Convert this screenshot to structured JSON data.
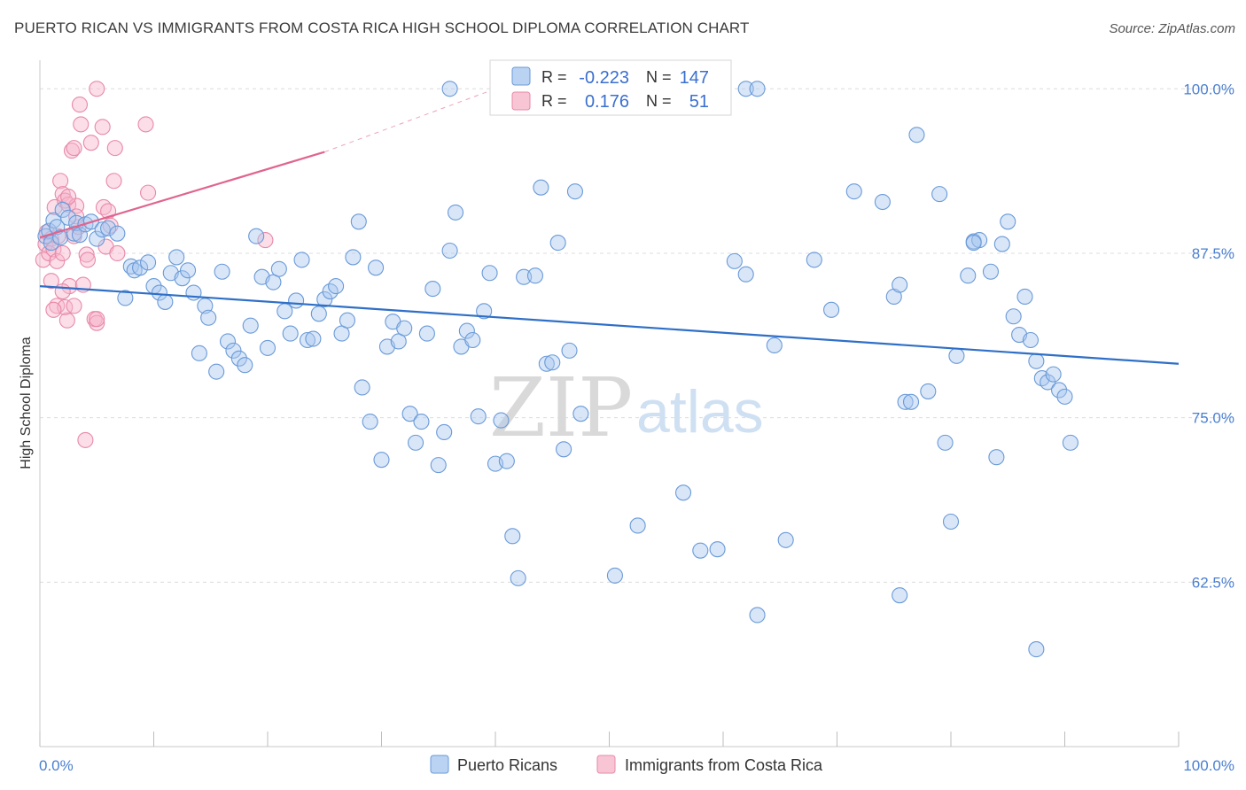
{
  "title": "PUERTO RICAN VS IMMIGRANTS FROM COSTA RICA HIGH SCHOOL DIPLOMA CORRELATION CHART",
  "source": "Source: ZipAtlas.com",
  "watermark": {
    "zip": "ZIP",
    "atlas": "atlas"
  },
  "colors": {
    "blue_fill": "#a9c8ef",
    "blue_stroke": "#6a9ad8",
    "blue_line": "#2f6fc7",
    "pink_fill": "#f6b6cb",
    "pink_stroke": "#e889a8",
    "pink_line": "#e0648e",
    "grid": "#dcdcdc",
    "tick_label": "#4a7fd0"
  },
  "legend_top": {
    "rows": [
      {
        "r_label": "R = ",
        "r_value": "-0.223",
        "n_label": "N = ",
        "n_value": "147",
        "series": "blue"
      },
      {
        "r_label": "R = ",
        "r_value": "0.176",
        "n_label": "N = ",
        "n_value": "51",
        "series": "pink"
      }
    ]
  },
  "legend_bottom": [
    {
      "label": "Puerto Ricans",
      "series": "blue"
    },
    {
      "label": "Immigrants from Costa Rica",
      "series": "pink"
    }
  ],
  "chart_data": {
    "type": "scatter",
    "title": "PUERTO RICAN VS IMMIGRANTS FROM COSTA RICA HIGH SCHOOL DIPLOMA CORRELATION CHART",
    "xlabel": "",
    "ylabel": "High School Diploma",
    "xlim": [
      0,
      100
    ],
    "ylim": [
      50,
      101.5
    ],
    "x_tick_labels": [
      "0.0%",
      "100.0%"
    ],
    "y_ticks": [
      62.5,
      75.0,
      87.5,
      100.0
    ],
    "y_tick_labels": [
      "62.5%",
      "75.0%",
      "87.5%",
      "100.0%"
    ],
    "grid": true,
    "series": [
      {
        "name": "Puerto Ricans",
        "color": "blue",
        "trend": {
          "x": [
            0,
            100
          ],
          "y": [
            85.0,
            79.1
          ],
          "dashed_extension": false
        },
        "points": [
          [
            0.5,
            88.8
          ],
          [
            0.8,
            89.2
          ],
          [
            1.0,
            88.3
          ],
          [
            1.2,
            90.0
          ],
          [
            1.5,
            89.5
          ],
          [
            1.8,
            88.7
          ],
          [
            2.0,
            90.8
          ],
          [
            2.5,
            90.2
          ],
          [
            3.0,
            89.0
          ],
          [
            3.2,
            89.8
          ],
          [
            3.5,
            88.9
          ],
          [
            4.0,
            89.7
          ],
          [
            4.5,
            89.9
          ],
          [
            5.0,
            88.6
          ],
          [
            5.5,
            89.3
          ],
          [
            6.0,
            89.4
          ],
          [
            6.8,
            89.0
          ],
          [
            7.5,
            84.1
          ],
          [
            8.0,
            86.5
          ],
          [
            8.3,
            86.2
          ],
          [
            8.8,
            86.4
          ],
          [
            9.5,
            86.8
          ],
          [
            10.0,
            85.0
          ],
          [
            10.5,
            84.5
          ],
          [
            11.0,
            83.8
          ],
          [
            11.5,
            86.0
          ],
          [
            12.0,
            87.2
          ],
          [
            12.5,
            85.6
          ],
          [
            13.0,
            86.2
          ],
          [
            13.5,
            84.5
          ],
          [
            14.0,
            79.9
          ],
          [
            14.5,
            83.5
          ],
          [
            14.8,
            82.6
          ],
          [
            15.5,
            78.5
          ],
          [
            16.0,
            86.1
          ],
          [
            16.5,
            80.8
          ],
          [
            17.0,
            80.1
          ],
          [
            17.5,
            79.5
          ],
          [
            18.0,
            79.0
          ],
          [
            18.5,
            82.0
          ],
          [
            19.0,
            88.8
          ],
          [
            19.5,
            85.7
          ],
          [
            20.0,
            80.3
          ],
          [
            20.5,
            85.3
          ],
          [
            21.0,
            86.3
          ],
          [
            21.5,
            83.1
          ],
          [
            22.0,
            81.4
          ],
          [
            22.5,
            83.9
          ],
          [
            23.0,
            87.0
          ],
          [
            23.5,
            80.9
          ],
          [
            24.0,
            81.0
          ],
          [
            24.5,
            82.9
          ],
          [
            25.0,
            84.0
          ],
          [
            25.5,
            84.6
          ],
          [
            26.0,
            85.0
          ],
          [
            26.5,
            81.4
          ],
          [
            27.0,
            82.4
          ],
          [
            27.5,
            87.2
          ],
          [
            28.0,
            89.9
          ],
          [
            28.3,
            77.3
          ],
          [
            29.0,
            74.7
          ],
          [
            29.5,
            86.4
          ],
          [
            30.0,
            71.8
          ],
          [
            30.5,
            80.4
          ],
          [
            31.0,
            82.3
          ],
          [
            31.5,
            80.8
          ],
          [
            32.0,
            81.8
          ],
          [
            32.5,
            75.3
          ],
          [
            33.0,
            73.1
          ],
          [
            33.5,
            74.7
          ],
          [
            34.0,
            81.4
          ],
          [
            34.5,
            84.8
          ],
          [
            35.0,
            71.4
          ],
          [
            35.5,
            73.9
          ],
          [
            36.0,
            87.7
          ],
          [
            36.5,
            90.6
          ],
          [
            37.0,
            80.4
          ],
          [
            37.5,
            81.6
          ],
          [
            38.0,
            80.9
          ],
          [
            38.5,
            75.1
          ],
          [
            39.0,
            83.1
          ],
          [
            39.5,
            86.0
          ],
          [
            40.0,
            71.5
          ],
          [
            40.5,
            74.8
          ],
          [
            41.0,
            71.7
          ],
          [
            41.5,
            66.0
          ],
          [
            42.0,
            62.8
          ],
          [
            42.5,
            85.7
          ],
          [
            43.5,
            85.8
          ],
          [
            44.0,
            92.5
          ],
          [
            44.5,
            79.1
          ],
          [
            45.0,
            79.2
          ],
          [
            45.5,
            88.3
          ],
          [
            46.0,
            72.6
          ],
          [
            46.5,
            80.1
          ],
          [
            47.0,
            92.2
          ],
          [
            47.5,
            75.3
          ],
          [
            36.0,
            100.0
          ],
          [
            53.0,
            100.0
          ],
          [
            58.0,
            100.0
          ],
          [
            60.0,
            100.0
          ],
          [
            62.0,
            100.0
          ],
          [
            63.0,
            100.0
          ],
          [
            50.5,
            63.0
          ],
          [
            52.5,
            66.8
          ],
          [
            56.5,
            69.3
          ],
          [
            58.0,
            64.9
          ],
          [
            59.5,
            65.0
          ],
          [
            61.0,
            86.9
          ],
          [
            62.0,
            85.9
          ],
          [
            63.0,
            60.0
          ],
          [
            64.5,
            80.5
          ],
          [
            65.5,
            65.7
          ],
          [
            68.0,
            87.0
          ],
          [
            69.5,
            83.2
          ],
          [
            71.5,
            92.2
          ],
          [
            74.0,
            91.4
          ],
          [
            75.5,
            61.5
          ],
          [
            76.0,
            76.2
          ],
          [
            76.5,
            76.2
          ],
          [
            77.0,
            96.5
          ],
          [
            78.0,
            77.0
          ],
          [
            79.0,
            92.0
          ],
          [
            79.5,
            73.1
          ],
          [
            80.0,
            67.1
          ],
          [
            80.5,
            79.7
          ],
          [
            81.5,
            85.8
          ],
          [
            82.0,
            88.4
          ],
          [
            82.5,
            88.5
          ],
          [
            82.0,
            88.3
          ],
          [
            83.5,
            86.1
          ],
          [
            84.0,
            72.0
          ],
          [
            84.5,
            88.2
          ],
          [
            85.0,
            89.9
          ],
          [
            85.5,
            82.7
          ],
          [
            86.0,
            81.3
          ],
          [
            86.5,
            84.2
          ],
          [
            87.0,
            80.9
          ],
          [
            87.5,
            79.3
          ],
          [
            88.0,
            78.0
          ],
          [
            88.5,
            77.7
          ],
          [
            89.0,
            78.3
          ],
          [
            89.5,
            77.1
          ],
          [
            90.0,
            76.6
          ],
          [
            90.5,
            73.1
          ],
          [
            87.5,
            57.4
          ],
          [
            75.0,
            84.2
          ],
          [
            75.5,
            85.1
          ]
        ]
      },
      {
        "name": "Immigrants from Costa Rica",
        "color": "pink",
        "trend": {
          "x": [
            0,
            25
          ],
          "y": [
            88.7,
            95.2
          ],
          "dashed_extension": true,
          "dashed_to": [
            40,
            100.0
          ]
        },
        "points": [
          [
            0.3,
            87.0
          ],
          [
            0.5,
            88.2
          ],
          [
            0.6,
            89.1
          ],
          [
            0.8,
            87.5
          ],
          [
            1.0,
            88.6
          ],
          [
            1.0,
            85.4
          ],
          [
            1.2,
            87.8
          ],
          [
            1.3,
            91.0
          ],
          [
            1.5,
            86.9
          ],
          [
            1.6,
            88.8
          ],
          [
            1.8,
            93.0
          ],
          [
            2.0,
            92.0
          ],
          [
            2.0,
            87.5
          ],
          [
            2.2,
            91.5
          ],
          [
            2.4,
            82.4
          ],
          [
            2.5,
            91.2
          ],
          [
            2.6,
            85.0
          ],
          [
            2.8,
            95.3
          ],
          [
            3.0,
            95.5
          ],
          [
            3.0,
            88.8
          ],
          [
            3.2,
            91.1
          ],
          [
            3.4,
            89.5
          ],
          [
            3.5,
            98.8
          ],
          [
            3.6,
            97.3
          ],
          [
            3.8,
            85.1
          ],
          [
            4.0,
            73.3
          ],
          [
            4.1,
            87.4
          ],
          [
            4.2,
            87.0
          ],
          [
            4.5,
            95.9
          ],
          [
            4.8,
            82.5
          ],
          [
            5.0,
            82.2
          ],
          [
            5.0,
            100.0
          ],
          [
            5.5,
            97.1
          ],
          [
            5.6,
            91.0
          ],
          [
            5.8,
            88.0
          ],
          [
            6.0,
            90.7
          ],
          [
            6.2,
            89.6
          ],
          [
            6.5,
            93.0
          ],
          [
            6.6,
            95.5
          ],
          [
            6.8,
            87.5
          ],
          [
            9.3,
            97.3
          ],
          [
            9.5,
            92.1
          ],
          [
            19.8,
            88.5
          ],
          [
            1.5,
            83.5
          ],
          [
            2.0,
            84.6
          ],
          [
            2.2,
            83.4
          ],
          [
            3.0,
            83.5
          ],
          [
            1.2,
            83.2
          ],
          [
            2.5,
            91.8
          ],
          [
            3.2,
            90.3
          ],
          [
            5.0,
            82.5
          ]
        ]
      }
    ]
  }
}
